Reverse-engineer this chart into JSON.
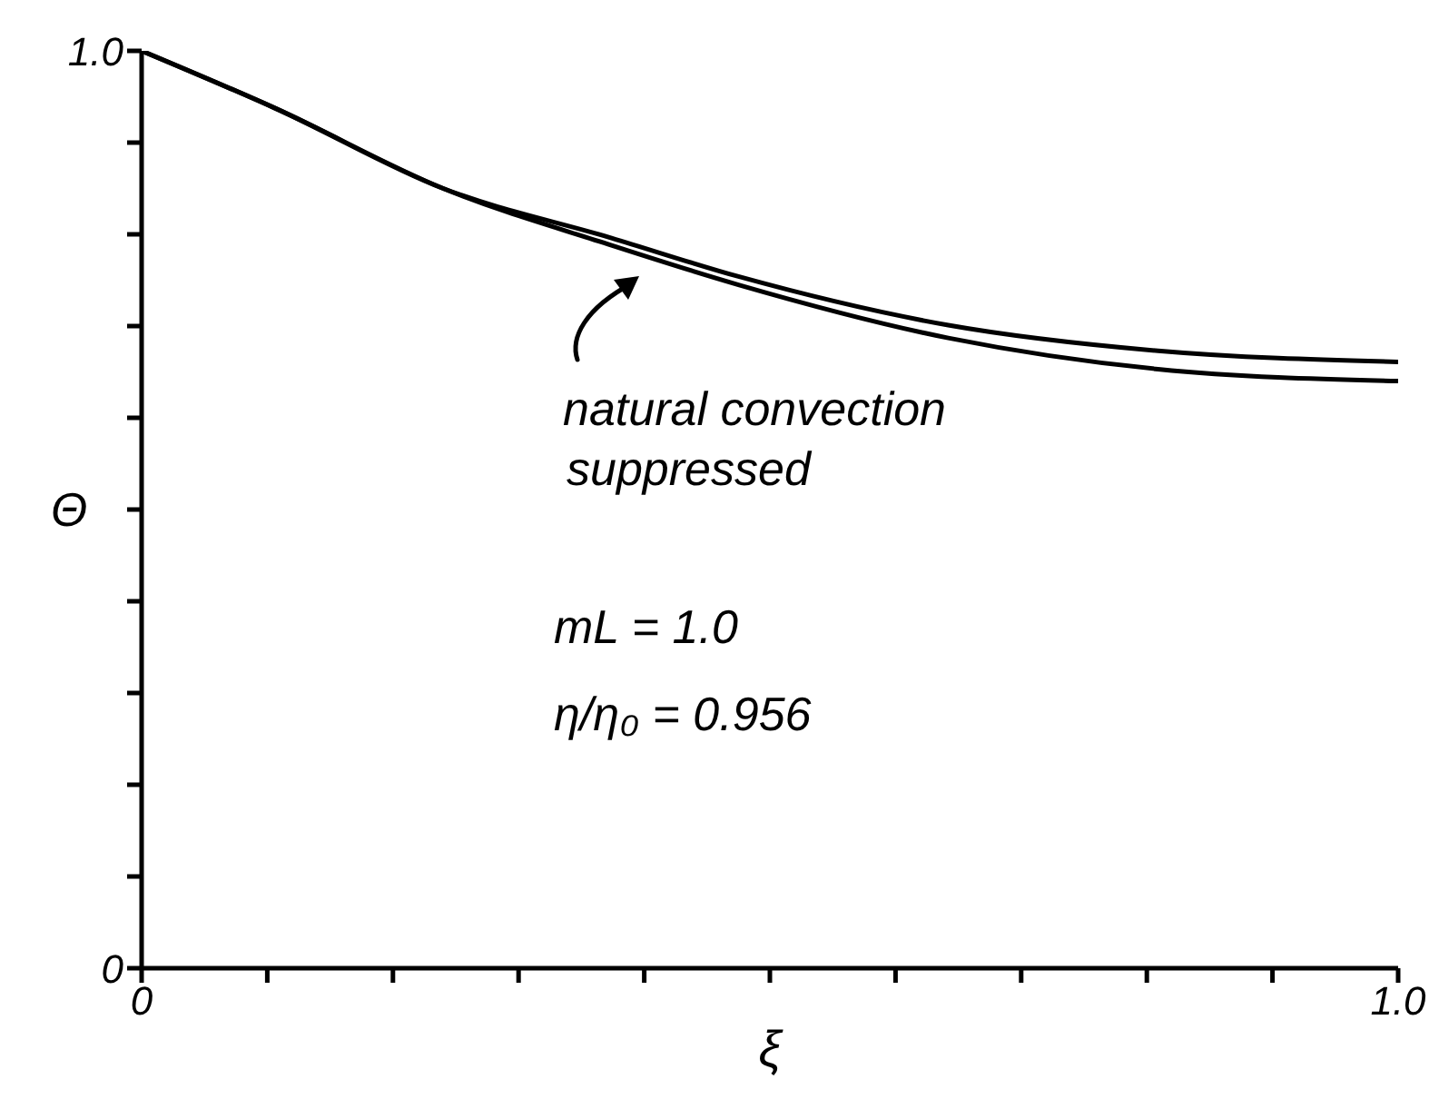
{
  "chart_data": {
    "type": "line",
    "xlabel": "ξ",
    "ylabel": "Θ",
    "x": [
      0,
      0.107,
      0.24,
      0.374,
      0.475,
      0.642,
      0.809,
      1.0
    ],
    "series": [
      {
        "color": "#000000",
        "values": [
          1.0,
          0.937,
          0.85,
          0.796,
          0.754,
          0.701,
          0.673,
          0.661
        ]
      },
      {
        "color": "#000000",
        "values": [
          1.0,
          0.937,
          0.85,
          0.788,
          0.745,
          0.687,
          0.653,
          0.64
        ]
      }
    ],
    "xlim": [
      0,
      1
    ],
    "ylim": [
      0,
      1
    ],
    "xticks": [
      0,
      {
        "value": 0.1,
        "label": null
      },
      {
        "value": 0.2,
        "label": null
      },
      {
        "value": 0.3,
        "label": null
      },
      {
        "value": 0.4,
        "label": null
      },
      {
        "value": 0.5,
        "label": null
      },
      {
        "value": 0.6,
        "label": null
      },
      {
        "value": 0.7,
        "label": null
      },
      {
        "value": 0.8,
        "label": null
      },
      {
        "value": 0.9,
        "label": null
      },
      {
        "value": 1,
        "label": "1.0"
      }
    ],
    "yticks": [
      0,
      {
        "value": 0.1,
        "label": null
      },
      {
        "value": 0.2,
        "label": null
      },
      {
        "value": 0.3,
        "label": null
      },
      {
        "value": 0.4,
        "label": null
      },
      {
        "value": 0.5,
        "label": null
      },
      {
        "value": 0.6,
        "label": null
      },
      {
        "value": 0.7,
        "label": null
      },
      {
        "value": 0.8,
        "label": null
      },
      {
        "value": 0.9,
        "label": null
      },
      {
        "value": 1,
        "label": "1.0"
      }
    ],
    "grid": false,
    "marker": "none",
    "line_style": "solid",
    "annotations": [
      "natural convection",
      "suppressed",
      "mL = 1.0",
      "η/η₀ = 0.956"
    ]
  }
}
